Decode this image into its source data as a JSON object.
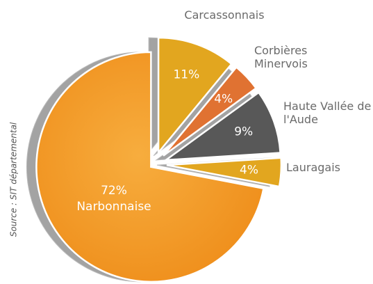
{
  "chart_data": {
    "type": "pie",
    "categories": [
      "Carcassonnais",
      "Corbières Minervois",
      "Haute Vallée de l'Aude",
      "Lauragais",
      "Narbonnaise"
    ],
    "values": [
      11,
      4,
      9,
      4,
      72
    ],
    "value_labels": [
      "11%",
      "4%",
      "9%",
      "4%",
      "72%"
    ],
    "colors": [
      "#e2a61f",
      "#e07232",
      "#585858",
      "#e2a61f",
      "#f39a26"
    ],
    "source": "Source : SIT départemental"
  }
}
